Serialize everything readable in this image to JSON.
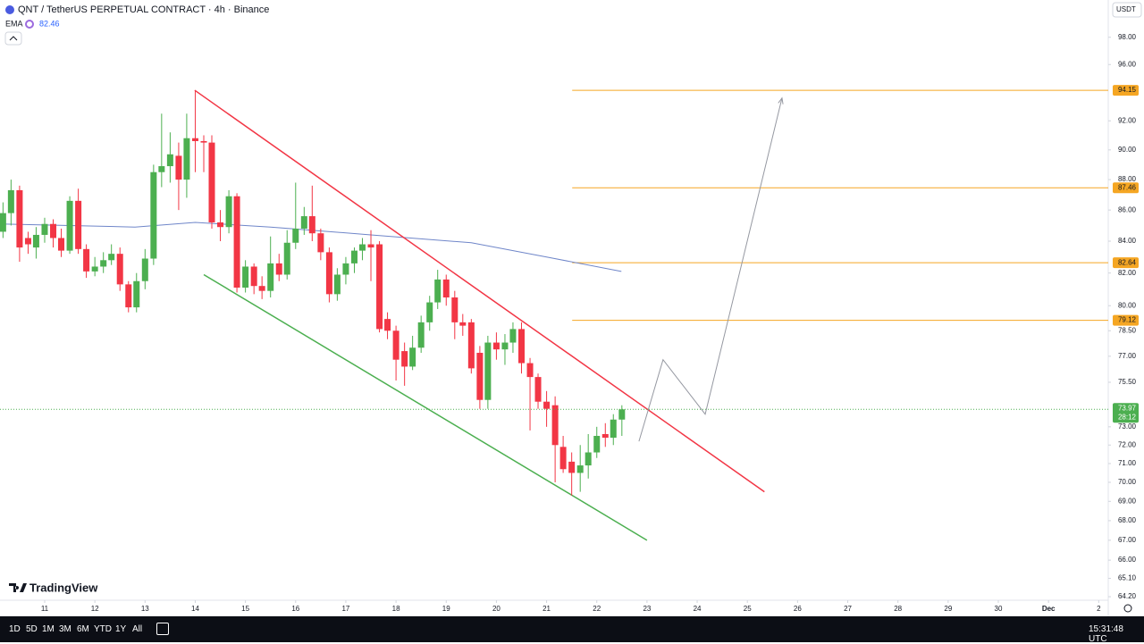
{
  "chart_data": {
    "type": "candlestick",
    "title": "QNT / TetherUS PERPETUAL CONTRACT · 4h · Binance",
    "currency": "USDT",
    "log_scale": true,
    "grid": false,
    "up_color": "#4caf50",
    "down_color": "#f23645",
    "x": [
      10.17,
      10.33,
      10.5,
      10.67,
      10.83,
      11,
      11.17,
      11.33,
      11.5,
      11.67,
      11.83,
      12,
      12.17,
      12.33,
      12.5,
      12.67,
      12.83,
      13,
      13.17,
      13.33,
      13.5,
      13.67,
      13.83,
      14,
      14.17,
      14.33,
      14.5,
      14.67,
      14.83,
      15,
      15.17,
      15.33,
      15.5,
      15.67,
      15.83,
      16,
      16.17,
      16.33,
      16.5,
      16.67,
      16.83,
      17,
      17.17,
      17.33,
      17.5,
      17.67,
      17.83,
      18,
      18.17,
      18.33,
      18.5,
      18.67,
      18.83,
      19,
      19.17,
      19.33,
      19.5,
      19.67,
      19.83,
      20,
      20.17,
      20.33,
      20.5,
      20.67,
      20.83,
      21,
      21.17,
      21.33,
      21.5,
      21.67,
      21.83,
      22,
      22.17,
      22.33,
      22.5
    ],
    "open": [
      84.6,
      85.8,
      87.3,
      84.2,
      83.6,
      84.4,
      85.1,
      84.2,
      83.4,
      86.6,
      83.5,
      82.1,
      82.4,
      82.8,
      83.2,
      81.3,
      79.9,
      81.5,
      82.9,
      88.5,
      88.9,
      89.6,
      88,
      90.8,
      90.6,
      90.5,
      85.2,
      84.9,
      86.9,
      81.1,
      82.4,
      81.2,
      80.9,
      82.6,
      81.9,
      83.9,
      84.8,
      85.6,
      84.5,
      83.3,
      80.7,
      81.9,
      82.6,
      83.4,
      83.8,
      83.8,
      79.2,
      78.5,
      77.3,
      76.4,
      77.5,
      79,
      80.2,
      81.6,
      80.5,
      79,
      79,
      77.2,
      74.5,
      77.8,
      77.4,
      77.8,
      78.6,
      76.6,
      75.8,
      74.4,
      74.2,
      71.9,
      71.1,
      70.5,
      70.9,
      71.6,
      72.6,
      72.4,
      73.4
    ],
    "high": [
      86.5,
      88,
      87.6,
      84.6,
      84.9,
      85.5,
      85.4,
      84.8,
      86.9,
      87.4,
      83.8,
      83,
      83.3,
      83.8,
      83.6,
      81.5,
      82,
      83.5,
      89,
      92.5,
      91.2,
      90.5,
      92.5,
      94.15,
      91,
      91,
      86,
      87.3,
      87.1,
      82.8,
      82.6,
      81.8,
      84.3,
      83.2,
      84.7,
      87.8,
      86.2,
      87.6,
      84.8,
      83.6,
      82.3,
      83,
      83.6,
      84.2,
      84.7,
      84,
      79.6,
      78.8,
      77.8,
      78.2,
      79.4,
      80.6,
      82.2,
      81.9,
      80.9,
      79.5,
      79.2,
      77.6,
      78.2,
      78.4,
      78.3,
      79,
      79,
      76.9,
      76,
      75,
      74.7,
      72.5,
      71.6,
      72,
      72.6,
      73,
      73.2,
      73.7,
      74.2
    ],
    "low": [
      84.2,
      85,
      82.7,
      83.2,
      82.9,
      83.9,
      83.6,
      83,
      83.2,
      83.2,
      81.7,
      81.8,
      82,
      82.5,
      80.9,
      79.6,
      79.6,
      81,
      82.5,
      87.5,
      87.8,
      86,
      86.8,
      88.5,
      88.5,
      84.8,
      84,
      84.5,
      80.8,
      80.8,
      80.7,
      80.4,
      80.5,
      81.5,
      81.6,
      83.5,
      84.4,
      84,
      82.8,
      80.2,
      80.3,
      81.3,
      82,
      82.8,
      81.5,
      78.4,
      78,
      75.6,
      75.3,
      76.2,
      77.2,
      78.5,
      79.8,
      80,
      78,
      78.2,
      76,
      74,
      74,
      76.8,
      76.5,
      77.2,
      76,
      72.8,
      74,
      73,
      70,
      70.5,
      69.3,
      69.5,
      70.2,
      71.3,
      71.9,
      72,
      72.5
    ],
    "close": [
      85.8,
      87.3,
      83.6,
      83.8,
      84.4,
      85.1,
      84.2,
      83.4,
      86.6,
      83.5,
      82.1,
      82.4,
      82.8,
      83.2,
      81.3,
      79.9,
      81.5,
      82.9,
      88.5,
      88.9,
      89.7,
      88,
      90.8,
      90.6,
      90.5,
      85.2,
      84.9,
      86.9,
      81.1,
      82.4,
      81.2,
      80.9,
      82.6,
      81.9,
      83.9,
      84.8,
      85.6,
      84.5,
      83.3,
      80.7,
      81.9,
      82.6,
      83.4,
      83.8,
      83.6,
      78.6,
      78.5,
      76.8,
      76.4,
      77.5,
      79,
      80.2,
      81.6,
      80.5,
      79,
      78.8,
      76.3,
      74.5,
      77.8,
      77.4,
      77.8,
      78.6,
      76.6,
      75.8,
      74.4,
      74,
      72,
      70.7,
      70.5,
      70.9,
      71.6,
      72.5,
      72.4,
      73.4,
      73.97
    ],
    "ema": {
      "name": "EMA",
      "value": 82.46,
      "color": "#6f86c9",
      "x": [
        10.11,
        12.8,
        14,
        15.5,
        17.5,
        19.5,
        21,
        22.49
      ],
      "values": [
        85.1,
        84.9,
        85.2,
        84.9,
        84.4,
        83.9,
        83,
        82.1
      ]
    },
    "levels": [
      {
        "value": 94.15,
        "color": "#f5a623",
        "x_start": 21.51
      },
      {
        "value": 87.46,
        "color": "#f5a623",
        "x_start": 21.51
      },
      {
        "value": 82.64,
        "color": "#f5a623",
        "x_start": 21.51
      },
      {
        "value": 79.12,
        "color": "#f5a623",
        "x_start": 21.51
      }
    ],
    "last_price": 73.97,
    "countdown": "28:12",
    "trendlines": [
      {
        "color": "#f23645",
        "x": [
          13.99,
          25.34
        ],
        "values": [
          94.15,
          69.5
        ]
      },
      {
        "color": "#4caf50",
        "x": [
          14.17,
          23.0
        ],
        "values": [
          81.9,
          67.0
        ]
      },
      {
        "color": "#9598a1",
        "x": [
          22.84,
          23.32,
          24.16,
          25.69
        ],
        "values": [
          72.2,
          76.8,
          73.7,
          93.6
        ]
      }
    ],
    "xlim": [
      10.11,
      32.19
    ],
    "ylim": [
      63.9,
      100.8
    ],
    "xticks": [
      11,
      12,
      13,
      14,
      15,
      16,
      17,
      18,
      19,
      20,
      21,
      22,
      23,
      24,
      25,
      26,
      27,
      28,
      29,
      30,
      {
        "value": 31,
        "label": "Dec"
      },
      {
        "value": 32,
        "label": "2"
      }
    ],
    "yticks": [
      {
        "value": 98,
        "label": "98.00"
      },
      {
        "value": 96,
        "label": "96.00"
      },
      {
        "value": 92,
        "label": "92.00"
      },
      {
        "value": 90,
        "label": "90.00"
      },
      {
        "value": 88,
        "label": "88.00"
      },
      {
        "value": 86,
        "label": "86.00"
      },
      {
        "value": 84,
        "label": "84.00"
      },
      {
        "value": 82,
        "label": "82.00"
      },
      {
        "value": 80,
        "label": "80.00"
      },
      {
        "value": 78.5,
        "label": "78.50"
      },
      {
        "value": 77,
        "label": "77.00"
      },
      {
        "value": 75.5,
        "label": "75.50"
      },
      {
        "value": 73,
        "label": "73.00"
      },
      {
        "value": 72,
        "label": "72.00"
      },
      {
        "value": 71,
        "label": "71.00"
      },
      {
        "value": 70,
        "label": "70.00"
      },
      {
        "value": 69,
        "label": "69.00"
      },
      {
        "value": 68,
        "label": "68.00"
      },
      {
        "value": 67,
        "label": "67.00"
      },
      {
        "value": 66,
        "label": "66.00"
      },
      {
        "value": 65.1,
        "label": "65.10"
      },
      {
        "value": 64.2,
        "label": "64.20"
      }
    ]
  },
  "ui": {
    "logo": "TradingView",
    "ranges": [
      "1D",
      "5D",
      "1M",
      "3M",
      "6M",
      "YTD",
      "1Y",
      "All"
    ],
    "clock": "15:31:48 UTC"
  }
}
